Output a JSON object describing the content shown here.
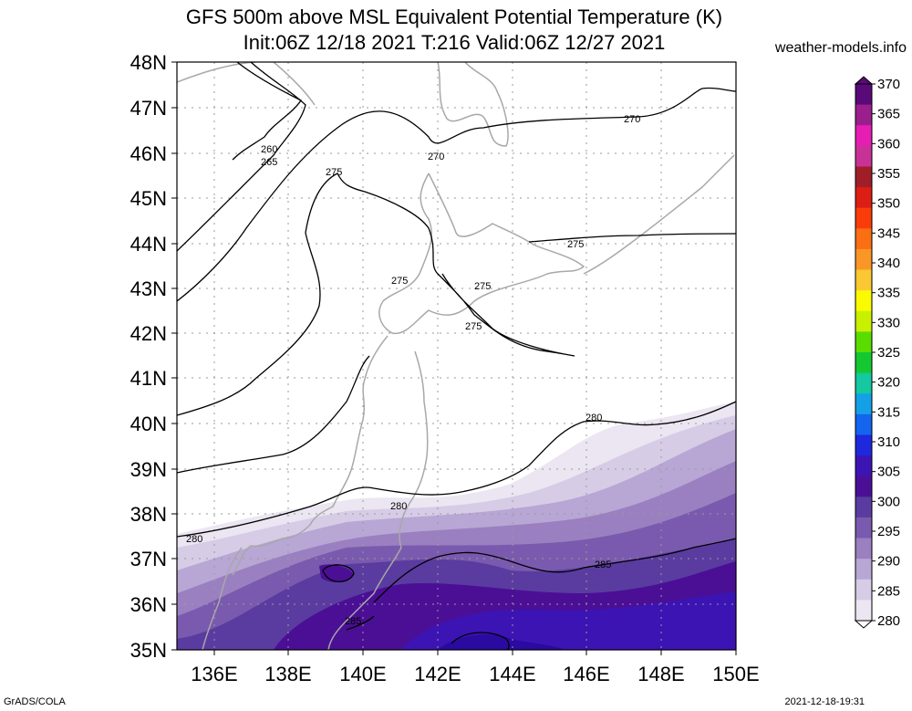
{
  "header": {
    "title_line1": "GFS 500m above MSL Equivalent Potential Temperature (K)",
    "title_line2": "Init:06Z 12/18 2021 T:216 Valid:06Z 12/27 2021",
    "site": "weather-models.info"
  },
  "footer": {
    "left": "GrADS/COLA",
    "right": "2021-12-18-19:31"
  },
  "map": {
    "lat_labels": [
      "48N",
      "47N",
      "46N",
      "45N",
      "44N",
      "43N",
      "42N",
      "41N",
      "40N",
      "39N",
      "38N",
      "37N",
      "36N",
      "35N"
    ],
    "lon_labels": [
      "136E",
      "138E",
      "140E",
      "142E",
      "144E",
      "146E",
      "148E",
      "150E"
    ],
    "contour_labels": [
      {
        "text": "260"
      },
      {
        "text": "265"
      },
      {
        "text": "270"
      },
      {
        "text": "270"
      },
      {
        "text": "275"
      },
      {
        "text": "275"
      },
      {
        "text": "275"
      },
      {
        "text": "275"
      },
      {
        "text": "275"
      },
      {
        "text": "280"
      },
      {
        "text": "280"
      },
      {
        "text": "280"
      },
      {
        "text": "285"
      },
      {
        "text": "285"
      }
    ]
  },
  "colorbar": {
    "labels": [
      "370",
      "365",
      "360",
      "355",
      "350",
      "345",
      "340",
      "335",
      "330",
      "325",
      "320",
      "315",
      "310",
      "305",
      "300",
      "295",
      "290",
      "285",
      "280"
    ],
    "colors": [
      "#5a0a78",
      "#9a1e8c",
      "#e61eb4",
      "#c83296",
      "#a01e28",
      "#dc1e14",
      "#fa3c0a",
      "#fa6e14",
      "#fa9628",
      "#fac832",
      "#fafa00",
      "#c8f000",
      "#5adc00",
      "#14c832",
      "#14c8a0",
      "#14a0e6",
      "#1464f0",
      "#1e28dc",
      "#3c14b4",
      "#4b0f96",
      "#5a3ca0",
      "#7a5aae",
      "#9a80c0",
      "#b8a6d4",
      "#d6cce6",
      "#ebe6f2"
    ]
  }
}
